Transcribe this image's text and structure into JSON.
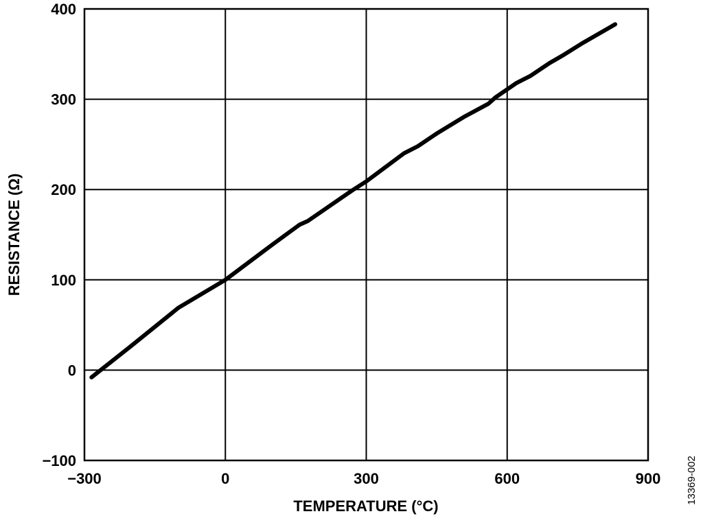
{
  "chart_data": {
    "type": "line",
    "xlabel": "TEMPERATURE (°C)",
    "ylabel": "RESISTANCE (Ω)",
    "annotation": "13369-002",
    "x": [
      -285,
      -200,
      -100,
      0,
      100,
      158,
      175,
      270,
      300,
      380,
      410,
      450,
      510,
      560,
      575,
      620,
      650,
      690,
      720,
      760,
      830
    ],
    "values": [
      -8,
      27,
      69,
      100,
      139,
      161,
      165,
      199,
      209,
      240,
      248,
      262,
      281,
      295,
      302,
      318,
      326,
      340,
      349,
      362,
      383
    ],
    "color": "#000000",
    "xlim": [
      -300,
      900
    ],
    "ylim": [
      -100,
      400
    ],
    "xticks": [
      {
        "value": -300,
        "label": "−300"
      },
      0,
      300,
      600,
      900
    ],
    "yticks": [
      {
        "value": -100,
        "label": "−100"
      },
      0,
      100,
      200,
      300,
      400
    ],
    "grid": true
  }
}
